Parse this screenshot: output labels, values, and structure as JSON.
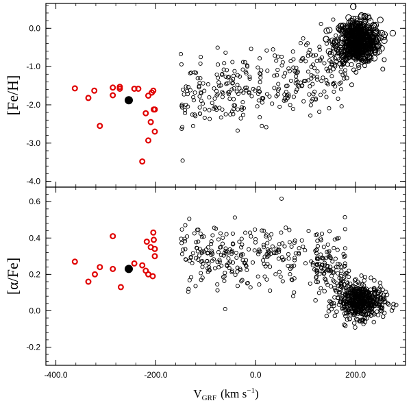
{
  "chart_data": [
    {
      "type": "scatter",
      "panel": "top",
      "ylabel": "[Fe/H]",
      "xlim": [
        -420,
        300
      ],
      "ylim": [
        -4.15,
        0.65
      ],
      "yticks": [
        0.0,
        -1.0,
        -2.0,
        -3.0,
        -4.0
      ],
      "ytick_labels": [
        "0.0",
        "-1.0",
        "-2.0",
        "-3.0",
        "-4.0"
      ],
      "series": [
        {
          "name": "red-sample",
          "color": "#e00000",
          "marker": "open-circle",
          "points": [
            [
              -362,
              -1.57
            ],
            [
              -335,
              -1.82
            ],
            [
              -323,
              -1.63
            ],
            [
              -312,
              -2.55
            ],
            [
              -286,
              -1.55
            ],
            [
              -286,
              -1.75
            ],
            [
              -272,
              -1.53
            ],
            [
              -272,
              -1.58
            ],
            [
              -243,
              -1.58
            ],
            [
              -235,
              -1.58
            ],
            [
              -227,
              -3.48
            ],
            [
              -215,
              -1.76
            ],
            [
              -215,
              -2.93
            ],
            [
              -210,
              -2.45
            ],
            [
              -208,
              -1.68
            ],
            [
              -205,
              -1.63
            ],
            [
              -204,
              -2.12
            ],
            [
              -202,
              -2.12
            ],
            [
              -202,
              -2.7
            ],
            [
              -220,
              -2.22
            ]
          ]
        },
        {
          "name": "mean",
          "color": "#000000",
          "marker": "filled-circle",
          "points": [
            [
              -254,
              -1.88
            ]
          ]
        }
      ]
    },
    {
      "type": "scatter",
      "panel": "bottom",
      "ylabel": "[α/Fe]",
      "xlabel": "V",
      "xlabel_sub": "GRF",
      "xlabel_units": "(km s",
      "xlabel_units_sup": "−1",
      "xlabel_units_end": ")",
      "xlim": [
        -420,
        300
      ],
      "ylim": [
        -0.3,
        0.68
      ],
      "yticks": [
        0.6,
        0.4,
        0.2,
        0.0,
        -0.2
      ],
      "ytick_labels": [
        "0.6",
        "0.4",
        "0.2",
        "0.0",
        "-0.2"
      ],
      "xticks": [
        -400,
        -200,
        0,
        200
      ],
      "xtick_labels": [
        "-400.0",
        "-200.0",
        "0.0",
        "200.0"
      ],
      "series": [
        {
          "name": "red-sample",
          "color": "#e00000",
          "marker": "open-circle",
          "points": [
            [
              -362,
              0.27
            ],
            [
              -335,
              0.16
            ],
            [
              -322,
              0.2
            ],
            [
              -312,
              0.24
            ],
            [
              -286,
              0.41
            ],
            [
              -286,
              0.23
            ],
            [
              -270,
              0.13
            ],
            [
              -243,
              0.26
            ],
            [
              -227,
              0.25
            ],
            [
              -218,
              0.38
            ],
            [
              -215,
              0.2
            ],
            [
              -210,
              0.35
            ],
            [
              -206,
              0.19
            ],
            [
              -205,
              0.43
            ],
            [
              -204,
              0.39
            ],
            [
              -202,
              0.34
            ],
            [
              -202,
              0.3
            ],
            [
              -220,
              0.22
            ]
          ]
        },
        {
          "name": "mean",
          "color": "#000000",
          "marker": "filled-circle",
          "points": [
            [
              -254,
              0.23
            ]
          ]
        }
      ]
    }
  ]
}
